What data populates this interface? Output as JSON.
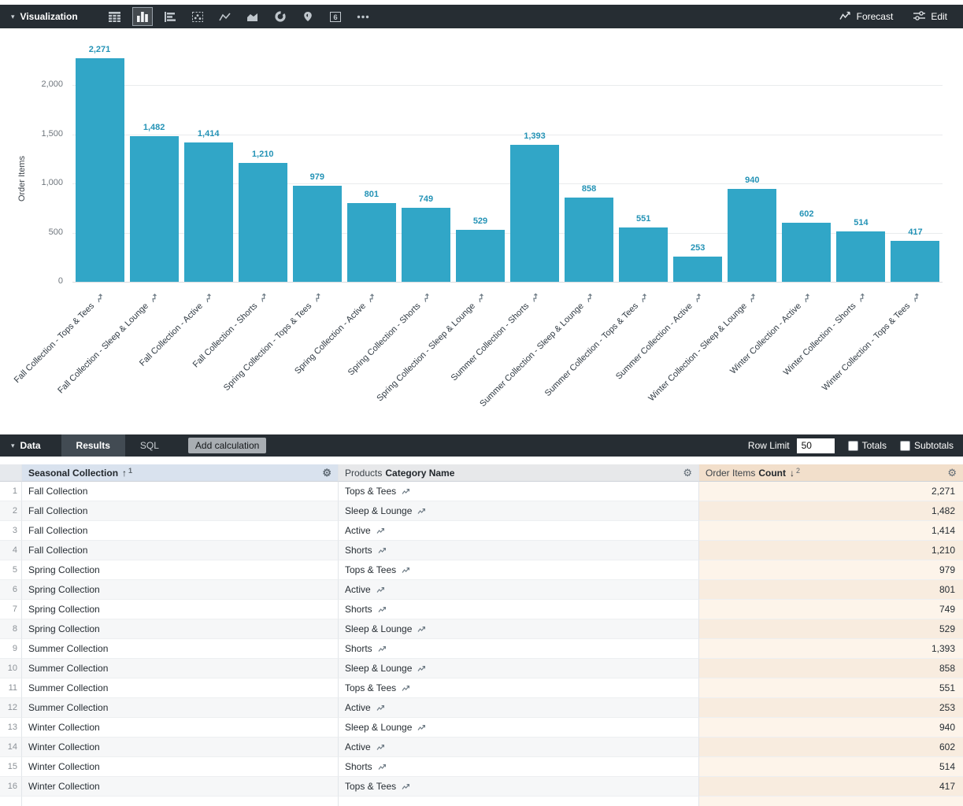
{
  "viz_toolbar": {
    "section_label": "Visualization",
    "icons": [
      {
        "name": "table-icon",
        "selected": false
      },
      {
        "name": "column-chart-icon",
        "selected": true
      },
      {
        "name": "bar-chart-icon",
        "selected": false
      },
      {
        "name": "scatter-icon",
        "selected": false
      },
      {
        "name": "line-chart-icon",
        "selected": false
      },
      {
        "name": "area-chart-icon",
        "selected": false
      },
      {
        "name": "donut-chart-icon",
        "selected": false
      },
      {
        "name": "map-icon",
        "selected": false
      },
      {
        "name": "single-value-icon",
        "selected": false
      },
      {
        "name": "more-icon",
        "selected": false
      }
    ],
    "forecast_label": "Forecast",
    "edit_label": "Edit"
  },
  "chart_data": {
    "type": "bar",
    "title": "",
    "xlabel": "",
    "ylabel": "Order Items",
    "ylim": [
      0,
      2400
    ],
    "yticks": [
      0,
      500,
      1000,
      1500,
      2000
    ],
    "ytick_labels": [
      "0",
      "500",
      "1,000",
      "1,500",
      "2,000"
    ],
    "grid": true,
    "legend": "none",
    "bar_color": "#31a6c7",
    "value_label_color": "#2493b6",
    "categories": [
      "Fall Collection - Tops & Tees",
      "Fall Collection - Sleep & Lounge",
      "Fall Collection - Active",
      "Fall Collection - Shorts",
      "Spring Collection - Tops & Tees",
      "Spring Collection - Active",
      "Spring Collection - Shorts",
      "Spring Collection - Sleep & Lounge",
      "Summer Collection - Shorts",
      "Summer Collection - Sleep & Lounge",
      "Summer Collection - Tops & Tees",
      "Summer Collection - Active",
      "Winter Collection - Sleep & Lounge",
      "Winter Collection - Active",
      "Winter Collection - Shorts",
      "Winter Collection - Tops & Tees"
    ],
    "values": [
      2271,
      1482,
      1414,
      1210,
      979,
      801,
      749,
      529,
      1393,
      858,
      551,
      253,
      940,
      602,
      514,
      417
    ],
    "value_labels": [
      "2,271",
      "1,482",
      "1,414",
      "1,210",
      "979",
      "801",
      "749",
      "529",
      "1,393",
      "858",
      "551",
      "253",
      "940",
      "602",
      "514",
      "417"
    ]
  },
  "data_toolbar": {
    "section_label": "Data",
    "tabs": [
      {
        "label": "Results",
        "active": true
      },
      {
        "label": "SQL",
        "active": false
      }
    ],
    "add_calculation_label": "Add calculation",
    "row_limit_label": "Row Limit",
    "row_limit_value": "50",
    "totals_label": "Totals",
    "totals_checked": false,
    "subtotals_label": "Subtotals",
    "subtotals_checked": false
  },
  "table": {
    "headers": {
      "collection": {
        "label": "Seasonal Collection",
        "sort_arrow": "↑",
        "sort_order": "1"
      },
      "category": {
        "view": "Products",
        "label": "Category Name"
      },
      "count": {
        "view": "Order Items",
        "label": "Count",
        "sort_arrow": "↓",
        "sort_order": "2"
      }
    },
    "rows": [
      {
        "num": "1",
        "collection": "Fall Collection",
        "category": "Tops & Tees",
        "count": "2,271"
      },
      {
        "num": "2",
        "collection": "Fall Collection",
        "category": "Sleep & Lounge",
        "count": "1,482"
      },
      {
        "num": "3",
        "collection": "Fall Collection",
        "category": "Active",
        "count": "1,414"
      },
      {
        "num": "4",
        "collection": "Fall Collection",
        "category": "Shorts",
        "count": "1,210"
      },
      {
        "num": "5",
        "collection": "Spring Collection",
        "category": "Tops & Tees",
        "count": "979"
      },
      {
        "num": "6",
        "collection": "Spring Collection",
        "category": "Active",
        "count": "801"
      },
      {
        "num": "7",
        "collection": "Spring Collection",
        "category": "Shorts",
        "count": "749"
      },
      {
        "num": "8",
        "collection": "Spring Collection",
        "category": "Sleep & Lounge",
        "count": "529"
      },
      {
        "num": "9",
        "collection": "Summer Collection",
        "category": "Shorts",
        "count": "1,393"
      },
      {
        "num": "10",
        "collection": "Summer Collection",
        "category": "Sleep & Lounge",
        "count": "858"
      },
      {
        "num": "11",
        "collection": "Summer Collection",
        "category": "Tops & Tees",
        "count": "551"
      },
      {
        "num": "12",
        "collection": "Summer Collection",
        "category": "Active",
        "count": "253"
      },
      {
        "num": "13",
        "collection": "Winter Collection",
        "category": "Sleep & Lounge",
        "count": "940"
      },
      {
        "num": "14",
        "collection": "Winter Collection",
        "category": "Active",
        "count": "602"
      },
      {
        "num": "15",
        "collection": "Winter Collection",
        "category": "Shorts",
        "count": "514"
      },
      {
        "num": "16",
        "collection": "Winter Collection",
        "category": "Tops & Tees",
        "count": "417"
      }
    ]
  }
}
